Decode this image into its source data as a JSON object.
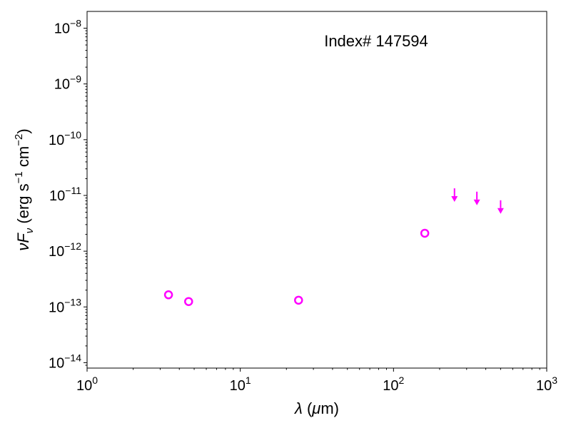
{
  "chart_data": {
    "type": "scatter",
    "x_scale": "log",
    "y_scale": "log",
    "xlim": [
      1,
      1000
    ],
    "ylim": [
      8e-15,
      2e-08
    ],
    "x_ticks": [
      {
        "value": 1,
        "base": "10",
        "exp": "0"
      },
      {
        "value": 10,
        "base": "10",
        "exp": "1"
      },
      {
        "value": 100,
        "base": "10",
        "exp": "2"
      },
      {
        "value": 1000,
        "base": "10",
        "exp": "3"
      }
    ],
    "y_ticks": [
      {
        "value": 1e-14,
        "base": "10",
        "exp": "−14"
      },
      {
        "value": 1e-13,
        "base": "10",
        "exp": "−13"
      },
      {
        "value": 1e-12,
        "base": "10",
        "exp": "−12"
      },
      {
        "value": 1e-11,
        "base": "10",
        "exp": "−11"
      },
      {
        "value": 1e-10,
        "base": "10",
        "exp": "−10"
      },
      {
        "value": 1e-09,
        "base": "10",
        "exp": "−9"
      },
      {
        "value": 1e-08,
        "base": "10",
        "exp": "−8"
      }
    ],
    "xlabel": {
      "sym": "λ",
      "rest": " (",
      "mu": "μ",
      "unit": "m)"
    },
    "ylabel": {
      "nu": "ν",
      "F": "F",
      "sub": "ν",
      "pre": " (erg s",
      "exp1": "−1",
      "mid": " cm",
      "exp2": "−2",
      "post": ")"
    },
    "annotation": "Index# 147594",
    "color": "#ff00ff",
    "points": [
      {
        "x": 3.4,
        "y": 1.65e-13
      },
      {
        "x": 4.6,
        "y": 1.25e-13
      },
      {
        "x": 24,
        "y": 1.32e-13
      },
      {
        "x": 160,
        "y": 2.1e-12
      }
    ],
    "upper_limits": [
      {
        "x": 250,
        "y": 1e-11
      },
      {
        "x": 350,
        "y": 8.7e-12
      },
      {
        "x": 500,
        "y": 6.1e-12
      }
    ]
  }
}
